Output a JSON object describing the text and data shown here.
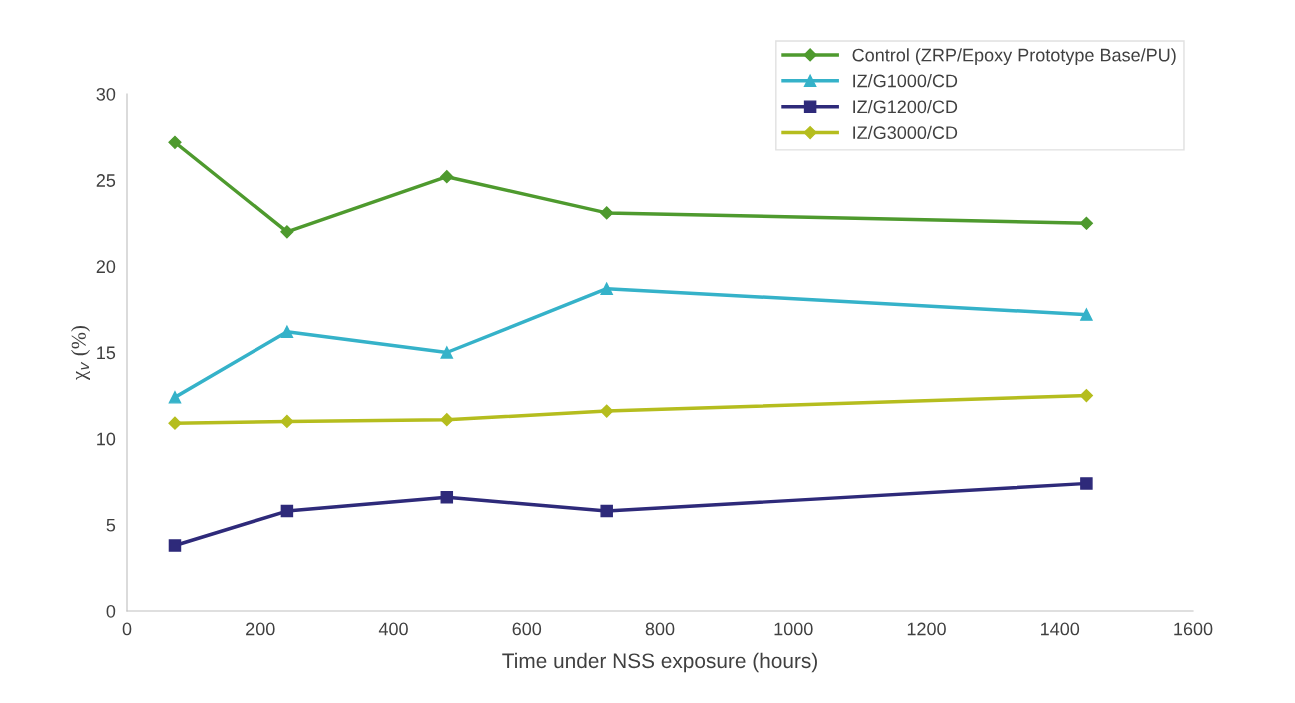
{
  "chart_data": {
    "type": "line",
    "xlabel": "Time under NSS exposure (hours)",
    "ylabel": "χ$_{v}$ (%)",
    "x": [
      72,
      240,
      480,
      720,
      1440
    ],
    "series": [
      {
        "name": "Control (ZRP/Epoxy Prototype Base/PU)",
        "color": "#4e9a2e",
        "marker": "diamond",
        "values": [
          27.2,
          22.0,
          25.2,
          23.1,
          22.5
        ]
      },
      {
        "name": "IZ/G1000/CD",
        "color": "#35b2c9",
        "marker": "triangle",
        "values": [
          12.4,
          16.2,
          15.0,
          18.7,
          17.2
        ]
      },
      {
        "name": "IZ/G1200/CD",
        "color": "#2e2a7a",
        "marker": "square",
        "values": [
          3.8,
          5.8,
          6.6,
          5.8,
          7.4
        ]
      },
      {
        "name": "IZ/G3000/CD",
        "color": "#b5bd1e",
        "marker": "diamond",
        "values": [
          10.9,
          11.0,
          11.1,
          11.6,
          12.5
        ]
      }
    ],
    "xlim": [
      0,
      1600
    ],
    "xticks": [
      0,
      200,
      400,
      600,
      800,
      1000,
      1200,
      1400,
      1600
    ],
    "ylim": [
      0,
      30
    ],
    "yticks": [
      0,
      5,
      10,
      15,
      20,
      25,
      30
    ],
    "grid": false,
    "legend": "top right",
    "line_style": "solid"
  }
}
